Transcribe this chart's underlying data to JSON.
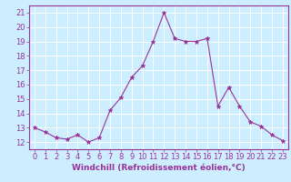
{
  "x": [
    0,
    1,
    2,
    3,
    4,
    5,
    6,
    7,
    8,
    9,
    10,
    11,
    12,
    13,
    14,
    15,
    16,
    17,
    18,
    19,
    20,
    21,
    22,
    23
  ],
  "y": [
    13.0,
    12.7,
    12.3,
    12.2,
    12.5,
    12.0,
    12.3,
    14.2,
    15.1,
    16.5,
    17.3,
    19.0,
    21.0,
    19.2,
    19.0,
    19.0,
    19.2,
    14.5,
    15.8,
    14.5,
    13.4,
    13.1,
    12.5,
    12.1
  ],
  "line_color": "#993399",
  "marker": "*",
  "marker_size": 3.5,
  "bg_color": "#cceeff",
  "grid_color": "#ffffff",
  "xlabel": "Windchill (Refroidissement éolien,°C)",
  "xlabel_color": "#993399",
  "tick_color": "#993399",
  "ylim": [
    11.5,
    21.5
  ],
  "xlim": [
    -0.5,
    23.5
  ],
  "yticks": [
    12,
    13,
    14,
    15,
    16,
    17,
    18,
    19,
    20,
    21
  ],
  "xticks": [
    0,
    1,
    2,
    3,
    4,
    5,
    6,
    7,
    8,
    9,
    10,
    11,
    12,
    13,
    14,
    15,
    16,
    17,
    18,
    19,
    20,
    21,
    22,
    23
  ],
  "xtick_labels": [
    "0",
    "1",
    "2",
    "3",
    "4",
    "5",
    "6",
    "7",
    "8",
    "9",
    "10",
    "11",
    "12",
    "13",
    "14",
    "15",
    "16",
    "17",
    "18",
    "19",
    "20",
    "21",
    "22",
    "23"
  ],
  "label_fontsize": 6.5,
  "tick_fontsize": 6.0,
  "linewidth": 0.8,
  "spine_color": "#993399",
  "spine_linewidth": 0.8
}
